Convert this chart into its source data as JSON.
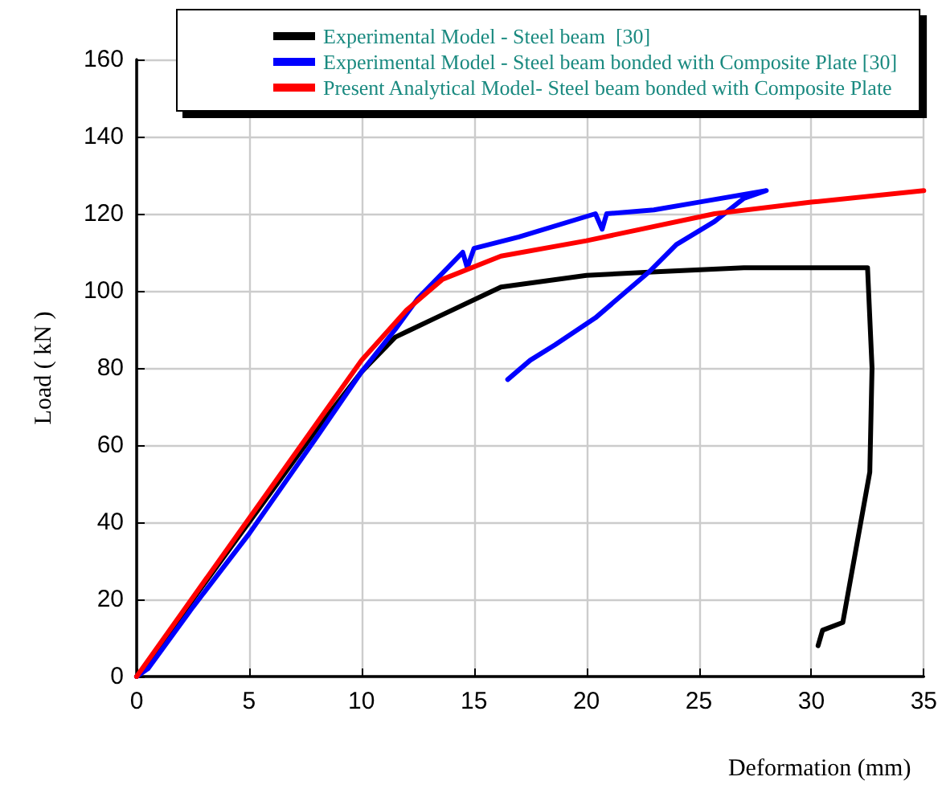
{
  "chart_data": {
    "type": "line",
    "xlabel": "Deformation (mm)",
    "ylabel": "Load ( kN )",
    "xlim": [
      0,
      35
    ],
    "xticks": [
      0,
      5,
      10,
      15,
      20,
      25,
      30,
      35
    ],
    "ylim": [
      0,
      160
    ],
    "yticks": [
      0,
      20,
      40,
      60,
      80,
      100,
      120,
      140,
      160
    ],
    "grid": true,
    "legend": "top",
    "marker": "none",
    "line_style": "solid",
    "series": [
      {
        "name": "Experimental Model - Steel beam  [30]",
        "color": "#000000",
        "x": [
          0,
          0.5,
          2.5,
          5,
          8,
          10,
          11.5,
          13.3,
          16.2,
          20,
          23.3,
          27,
          30,
          32.5,
          32.7,
          32.6,
          31.4,
          30.5,
          30.3
        ],
        "values": [
          0,
          3,
          20,
          40,
          64,
          79,
          88,
          93,
          101,
          104,
          105,
          106,
          106,
          106,
          80,
          53,
          14,
          12,
          8
        ]
      },
      {
        "name": "Experimental Model - Steel beam bonded with Composite Plate [30]",
        "color": "#0000ff",
        "x": [
          0,
          0.5,
          2.5,
          5,
          8,
          10,
          11.5,
          12.5,
          14.5,
          14.7,
          15,
          17,
          20.4,
          20.7,
          20.9,
          23,
          25,
          28,
          27,
          25.7,
          24,
          22.8,
          20.4,
          18.6,
          17.5,
          16.5
        ],
        "values": [
          0,
          2,
          18,
          37,
          62,
          79,
          90,
          98,
          110,
          106,
          111,
          114,
          120,
          116,
          120,
          121,
          123,
          126,
          124,
          118,
          112,
          105,
          93,
          86,
          82,
          77
        ]
      },
      {
        "name": "Present Analytical Model- Steel beam bonded with Composite Plate",
        "color": "#ff0000",
        "x": [
          0,
          5,
          10,
          12,
          13.6,
          16.2,
          20,
          25.7,
          30,
          35
        ],
        "values": [
          0,
          41,
          82,
          95,
          103,
          109,
          113,
          120,
          123,
          126
        ]
      }
    ]
  }
}
